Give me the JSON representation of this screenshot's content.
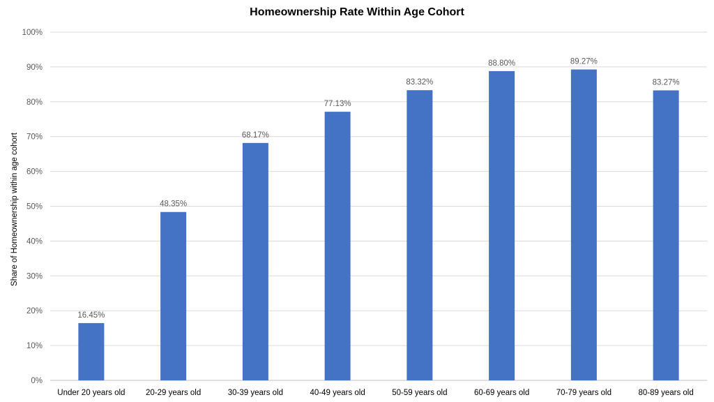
{
  "chart_data": {
    "type": "bar",
    "title": "Homeownership Rate Within Age Cohort",
    "xlabel": "",
    "ylabel": "Share of Homeownership within age cohort",
    "categories": [
      "Under 20 years old",
      "20-29 years old",
      "30-39 years old",
      "40-49 years old",
      "50-59 years old",
      "60-69 years old",
      "70-79 years old",
      "80-89 years old"
    ],
    "values": [
      16.45,
      48.35,
      68.17,
      77.13,
      83.32,
      88.8,
      89.27,
      83.27
    ],
    "data_labels": [
      "16.45%",
      "48.35%",
      "68.17%",
      "77.13%",
      "83.32%",
      "88.80%",
      "89.27%",
      "83.27%"
    ],
    "ylim": [
      0,
      100
    ],
    "yticks": [
      0,
      10,
      20,
      30,
      40,
      50,
      60,
      70,
      80,
      90,
      100
    ],
    "ytick_labels": [
      "0%",
      "10%",
      "20%",
      "30%",
      "40%",
      "50%",
      "60%",
      "70%",
      "80%",
      "90%",
      "100%"
    ],
    "grid": true,
    "legend": "none",
    "colors": {
      "bar": "#4472C4",
      "grid": "#D9D9D9",
      "text": "#595959",
      "title": "#000000"
    }
  }
}
